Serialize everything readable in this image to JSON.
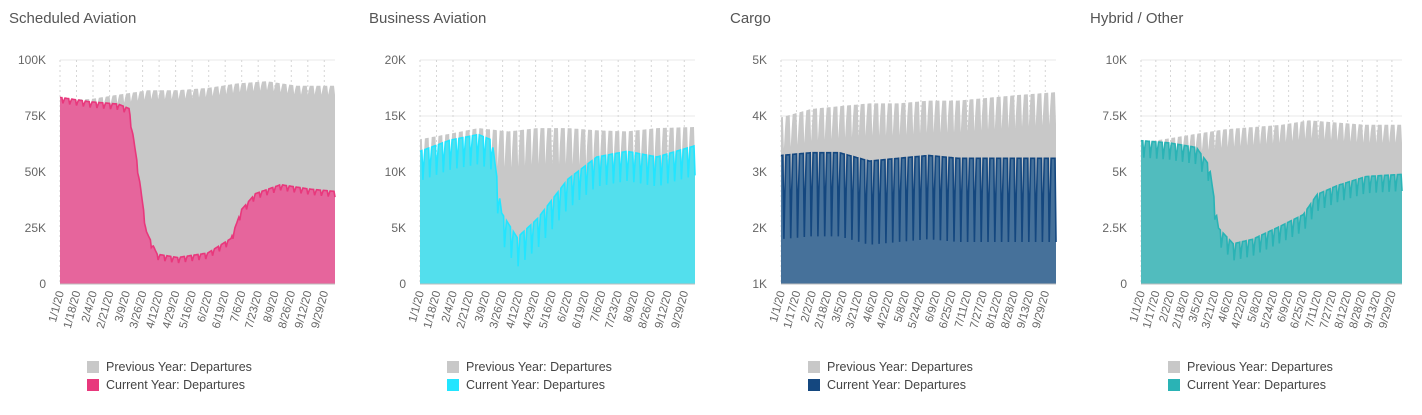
{
  "chart_data": [
    {
      "type": "area",
      "title": "Scheduled Aviation",
      "ylim": [
        0,
        100000
      ],
      "yticks": [
        0,
        25000,
        50000,
        75000,
        100000
      ],
      "ytick_labels": [
        "0",
        "25K",
        "50K",
        "75K",
        "100K"
      ],
      "xtick_labels": [
        "1/1/20",
        "1/18/20",
        "2/4/20",
        "2/21/20",
        "3/9/20",
        "3/26/20",
        "4/12/20",
        "4/29/20",
        "5/16/20",
        "6/2/20",
        "6/19/20",
        "7/6/20",
        "7/23/20",
        "8/9/20",
        "8/26/20",
        "9/12/20",
        "9/29/20"
      ],
      "colors": {
        "previous": "#c8c8c8",
        "current": "#e8609a",
        "current_line": "#e8387c"
      },
      "series": [
        {
          "name": "Previous Year: Departures",
          "key": "previous",
          "x": [
            "1/1/20",
            "2/1/20",
            "3/1/20",
            "4/1/20",
            "5/1/20",
            "6/1/20",
            "7/1/20",
            "8/1/20",
            "9/1/20",
            "10/10/20"
          ],
          "values": [
            82000,
            82000,
            84000,
            86000,
            86000,
            87000,
            89000,
            90000,
            88000,
            88000
          ],
          "amplitude": 3500
        },
        {
          "name": "Current Year: Departures",
          "key": "current",
          "x": [
            "1/1/20",
            "2/1/20",
            "3/1/20",
            "3/12/20",
            "3/20/20",
            "3/30/20",
            "4/10/20",
            "5/1/20",
            "6/1/20",
            "6/25/20",
            "7/6/20",
            "7/20/20",
            "8/15/20",
            "9/15/20",
            "10/10/20"
          ],
          "values": [
            83000,
            81000,
            80000,
            78000,
            55000,
            23000,
            13000,
            11500,
            13500,
            20000,
            33000,
            40000,
            44000,
            42000,
            41000
          ],
          "amplitude": 2200
        }
      ],
      "legend": "bottom-left"
    },
    {
      "type": "area",
      "title": "Business Aviation",
      "ylim": [
        0,
        20000
      ],
      "yticks": [
        0,
        5000,
        10000,
        15000,
        20000
      ],
      "ytick_labels": [
        "0",
        "5K",
        "10K",
        "15K",
        "20K"
      ],
      "xtick_labels": [
        "1/1/20",
        "1/18/20",
        "2/4/20",
        "2/21/20",
        "3/9/20",
        "3/26/20",
        "4/12/20",
        "4/29/20",
        "5/16/20",
        "6/2/20",
        "6/19/20",
        "7/6/20",
        "7/23/20",
        "8/9/20",
        "8/26/20",
        "9/12/20",
        "9/29/20"
      ],
      "colors": {
        "previous": "#c8c8c8",
        "current": "#4de0ef",
        "current_line": "#22e5ff"
      },
      "series": [
        {
          "name": "Previous Year: Departures",
          "key": "previous",
          "x": [
            "1/1/20",
            "2/1/20",
            "3/1/20",
            "4/1/20",
            "5/1/20",
            "6/1/20",
            "7/1/20",
            "8/1/20",
            "9/1/20",
            "10/10/20"
          ],
          "values": [
            12500,
            13000,
            13500,
            13200,
            13500,
            13500,
            13300,
            13200,
            13500,
            13600
          ],
          "amplitude": 2800
        },
        {
          "name": "Current Year: Departures",
          "key": "current",
          "x": [
            "1/1/20",
            "2/1/20",
            "3/1/20",
            "3/15/20",
            "3/25/20",
            "4/10/20",
            "5/1/20",
            "6/1/20",
            "7/1/20",
            "8/1/20",
            "9/1/20",
            "10/10/20"
          ],
          "values": [
            11500,
            12500,
            13000,
            12500,
            6000,
            3800,
            5500,
            9000,
            11000,
            11500,
            11000,
            12000
          ],
          "amplitude": 2300
        }
      ],
      "legend": "bottom-left"
    },
    {
      "type": "area",
      "title": "Cargo",
      "ylim": [
        1000,
        5000
      ],
      "yticks": [
        1000,
        2000,
        3000,
        4000,
        5000
      ],
      "ytick_labels": [
        "1K",
        "2K",
        "3K",
        "4K",
        "5K"
      ],
      "xtick_labels": [
        "1/1/20",
        "1/17/20",
        "2/2/20",
        "2/18/20",
        "3/5/20",
        "3/21/20",
        "4/6/20",
        "4/22/20",
        "5/8/20",
        "5/24/20",
        "6/9/20",
        "6/25/20",
        "7/11/20",
        "7/27/20",
        "8/12/20",
        "8/28/20",
        "9/13/20",
        "9/29/20"
      ],
      "colors": {
        "previous": "#c8c8c8",
        "current": "#3f6d98",
        "current_line": "#14477f"
      },
      "series": [
        {
          "name": "Previous Year: Departures",
          "key": "previous",
          "x": [
            "1/1/20",
            "2/1/20",
            "3/1/20",
            "4/1/20",
            "5/1/20",
            "6/1/20",
            "7/1/20",
            "8/1/20",
            "9/1/20",
            "10/10/20"
          ],
          "values": [
            3900,
            4050,
            4100,
            4150,
            4150,
            4200,
            4200,
            4250,
            4300,
            4350
          ],
          "amplitude": 500
        },
        {
          "name": "Current Year: Departures",
          "key": "current",
          "x": [
            "1/1/20",
            "2/1/20",
            "3/1/20",
            "4/1/20",
            "5/1/20",
            "6/1/20",
            "7/1/20",
            "8/1/20",
            "9/1/20",
            "10/10/20"
          ],
          "values": [
            3100,
            3150,
            3150,
            3000,
            3050,
            3100,
            3050,
            3050,
            3050,
            3050
          ],
          "amplitude": 1300
        }
      ],
      "legend": "bottom-left"
    },
    {
      "type": "area",
      "title": "Hybrid / Other",
      "ylim": [
        0,
        10000
      ],
      "yticks": [
        0,
        2500,
        5000,
        7500,
        10000
      ],
      "ytick_labels": [
        "0",
        "2.5K",
        "5K",
        "7.5K",
        "10K"
      ],
      "xtick_labels": [
        "1/1/20",
        "1/17/20",
        "2/2/20",
        "2/18/20",
        "3/5/20",
        "3/21/20",
        "4/6/20",
        "4/22/20",
        "5/8/20",
        "5/24/20",
        "6/9/20",
        "6/25/20",
        "7/11/20",
        "7/27/20",
        "8/12/20",
        "8/28/20",
        "9/13/20",
        "9/29/20"
      ],
      "colors": {
        "previous": "#c8c8c8",
        "current": "#4bbcbe",
        "current_line": "#2ab3b5"
      },
      "series": [
        {
          "name": "Previous Year: Departures",
          "key": "previous",
          "x": [
            "1/1/20",
            "2/1/20",
            "3/1/20",
            "4/1/20",
            "5/1/20",
            "6/1/20",
            "7/1/20",
            "8/1/20",
            "9/1/20",
            "10/10/20"
          ],
          "values": [
            6200,
            6400,
            6600,
            6800,
            6900,
            7000,
            7200,
            7100,
            7000,
            7000
          ],
          "amplitude": 700
        },
        {
          "name": "Current Year: Departures",
          "key": "current",
          "x": [
            "1/1/20",
            "2/1/20",
            "3/1/20",
            "3/15/20",
            "3/25/20",
            "4/10/20",
            "5/1/20",
            "6/1/20",
            "6/25/20",
            "7/10/20",
            "8/1/20",
            "9/1/20",
            "10/10/20"
          ],
          "values": [
            6300,
            6200,
            6000,
            5200,
            2400,
            1700,
            1900,
            2500,
            3000,
            3900,
            4300,
            4700,
            4800
          ],
          "amplitude": 650
        }
      ],
      "legend": "bottom-left"
    }
  ]
}
